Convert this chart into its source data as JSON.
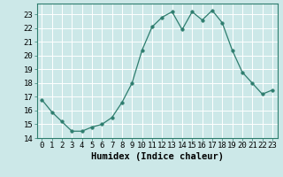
{
  "x": [
    0,
    1,
    2,
    3,
    4,
    5,
    6,
    7,
    8,
    9,
    10,
    11,
    12,
    13,
    14,
    15,
    16,
    17,
    18,
    19,
    20,
    21,
    22,
    23
  ],
  "y": [
    16.8,
    15.9,
    15.2,
    14.5,
    14.5,
    14.8,
    15.0,
    15.5,
    16.6,
    18.0,
    20.4,
    22.1,
    22.8,
    23.2,
    21.9,
    23.2,
    22.6,
    23.3,
    22.4,
    20.4,
    18.8,
    18.0,
    17.2,
    17.5
  ],
  "line_color": "#2e7d6e",
  "marker": "o",
  "marker_size": 2.5,
  "bg_color": "#cce8e8",
  "grid_color": "#ffffff",
  "xlabel": "Humidex (Indice chaleur)",
  "ylabel": "",
  "title": "",
  "xlim": [
    -0.5,
    23.5
  ],
  "ylim": [
    14,
    23.8
  ],
  "yticks": [
    14,
    15,
    16,
    17,
    18,
    19,
    20,
    21,
    22,
    23
  ],
  "xticks": [
    0,
    1,
    2,
    3,
    4,
    5,
    6,
    7,
    8,
    9,
    10,
    11,
    12,
    13,
    14,
    15,
    16,
    17,
    18,
    19,
    20,
    21,
    22,
    23
  ],
  "tick_fontsize": 6.5,
  "xlabel_fontsize": 7.5
}
